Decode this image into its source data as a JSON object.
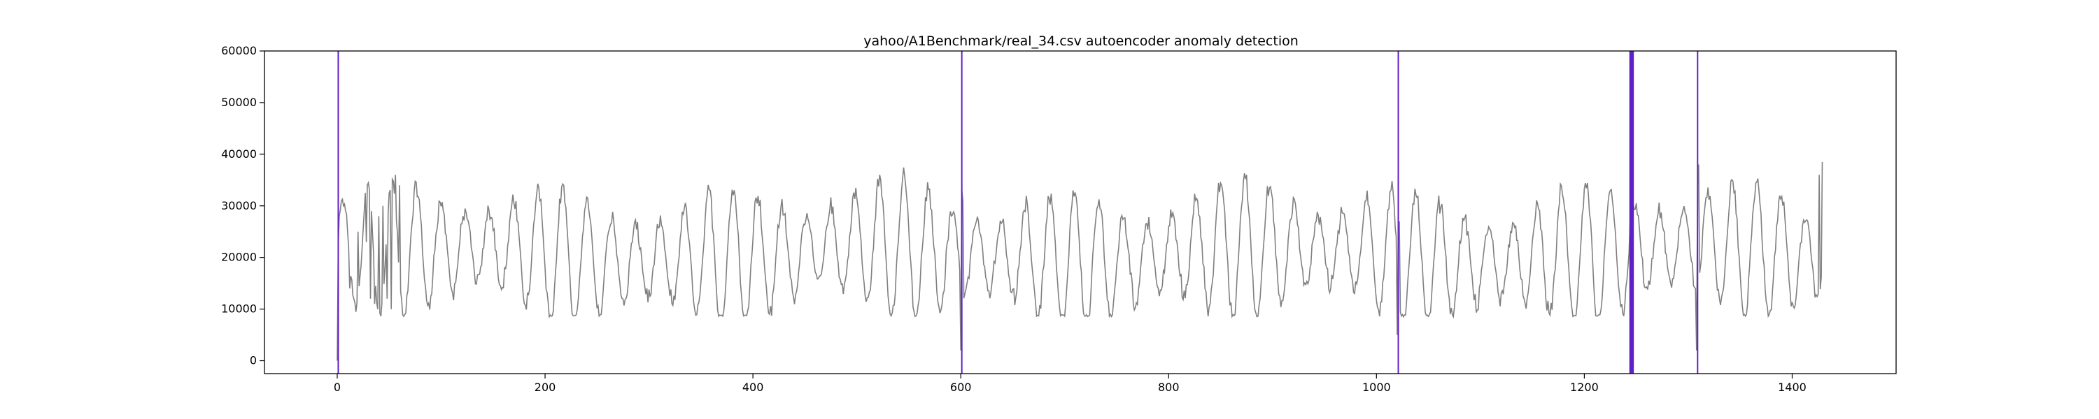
{
  "chart_data": {
    "type": "line",
    "title": "yahoo/A1Benchmark/real_34.csv autoencoder anomaly detection",
    "xlabel": "",
    "ylabel": "",
    "xlim": [
      -70,
      1500
    ],
    "ylim": [
      -2500,
      60000
    ],
    "xticks": [
      0,
      200,
      400,
      600,
      800,
      1000,
      1200,
      1400
    ],
    "xtick_labels": [
      "0",
      "200",
      "400",
      "600",
      "800",
      "1000",
      "1200",
      "1400"
    ],
    "yticks": [
      0,
      10000,
      20000,
      30000,
      40000,
      50000,
      60000
    ],
    "ytick_labels": [
      "0",
      "10000",
      "20000",
      "30000",
      "40000",
      "50000",
      "60000"
    ],
    "grid": false,
    "series": [
      {
        "color": "#808080",
        "n_points": 1430,
        "period": 23.45,
        "x": [
          0,
          2,
          4,
          6,
          8,
          12,
          16,
          20,
          24,
          28,
          32,
          36,
          40,
          44,
          48,
          52,
          56,
          60,
          600,
          601,
          602,
          1020,
          1021,
          1022,
          1244,
          1245,
          1246,
          1308,
          1309,
          1310,
          1426,
          1429
        ],
        "values": [
          0,
          28000,
          31000,
          30000,
          29000,
          14000,
          12000,
          25000,
          22000,
          23000,
          12000,
          11000,
          28000,
          30000,
          12000,
          10000,
          36000,
          34000,
          2000,
          33000,
          31000,
          5000,
          26000,
          27000,
          27000,
          12000,
          33000,
          2000,
          34000,
          38000,
          36000,
          38500
        ]
      }
    ],
    "anomalies": {
      "color": "#6020c8",
      "x": [
        1,
        601,
        1021,
        1244,
        1245,
        1246,
        1247,
        1309
      ]
    }
  }
}
